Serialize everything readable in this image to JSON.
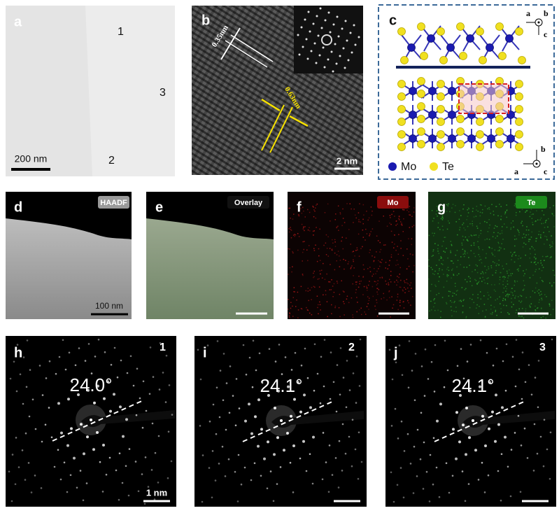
{
  "panels": {
    "a": {
      "label": "a",
      "regions": [
        "1",
        "3",
        "2"
      ],
      "scale_bar": "200 nm"
    },
    "b": {
      "label": "b",
      "spacings": [
        "0.35nm",
        "0.63nm"
      ],
      "scale_bar": "2 nm"
    },
    "c": {
      "label": "c",
      "top_axes": [
        "a",
        "b",
        "c"
      ],
      "legend": [
        "Mo",
        "Te"
      ],
      "bottom_axes": [
        "b",
        "a",
        "c"
      ]
    },
    "d": {
      "label": "d",
      "tag": "HAADF",
      "scale_bar": "100 nm"
    },
    "e": {
      "label": "e",
      "tag": "Overlay"
    },
    "f": {
      "label": "f",
      "tag": "Mo"
    },
    "g": {
      "label": "g",
      "tag": "Te"
    },
    "h": {
      "label": "h",
      "region": "1",
      "angle": "24.0°",
      "scale_bar": "1 nm"
    },
    "i": {
      "label": "i",
      "region": "2",
      "angle": "24.1°"
    },
    "j": {
      "label": "j",
      "region": "3",
      "angle": "24.1°"
    }
  }
}
